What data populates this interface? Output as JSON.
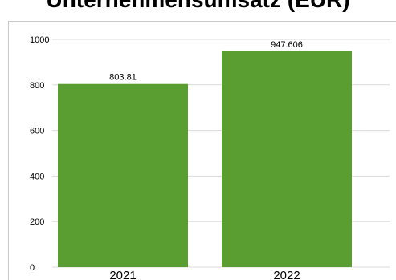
{
  "chart_data": {
    "type": "bar",
    "title": "Unternehmensumsatz (EUR)",
    "categories": [
      "2021",
      "2022"
    ],
    "values": [
      803.81,
      947.606
    ],
    "value_labels": [
      "803.81",
      "947.606"
    ],
    "ylim": [
      0,
      1000
    ],
    "yticks": [
      "0",
      "200",
      "400",
      "600",
      "800",
      "1000"
    ],
    "xlabel": "",
    "ylabel": "",
    "grid": true,
    "bar_color": "#5a9e31",
    "grid_color": "#d9d9d9",
    "legend": "none"
  }
}
